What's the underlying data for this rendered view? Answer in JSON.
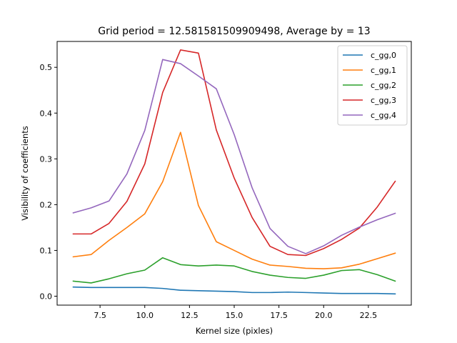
{
  "chart_data": {
    "type": "line",
    "title": "Grid period = 12.581581509909498, Average by = 13",
    "xlabel": "Kernel size (pixles)",
    "ylabel": "Visibility of coefficients",
    "xlim": [
      5.1,
      24.9
    ],
    "ylim": [
      -0.0195,
      0.5565
    ],
    "xticks": [
      7.5,
      10.0,
      12.5,
      15.0,
      17.5,
      20.0,
      22.5
    ],
    "xtick_labels": [
      "7.5",
      "10.0",
      "12.5",
      "15.0",
      "17.5",
      "20.0",
      "22.5"
    ],
    "yticks": [
      0.0,
      0.1,
      0.2,
      0.3,
      0.4,
      0.5
    ],
    "ytick_labels": [
      "0.0",
      "0.1",
      "0.2",
      "0.3",
      "0.4",
      "0.5"
    ],
    "grid": false,
    "legend_position": "top-right",
    "x": [
      6,
      7,
      8,
      9,
      10,
      11,
      12,
      13,
      14,
      15,
      16,
      17,
      18,
      19,
      20,
      21,
      22,
      23,
      24
    ],
    "series": [
      {
        "name": "c_gg,0",
        "color": "#1f77b4",
        "values": [
          0.02,
          0.019,
          0.019,
          0.019,
          0.019,
          0.017,
          0.013,
          0.012,
          0.011,
          0.01,
          0.008,
          0.008,
          0.009,
          0.008,
          0.007,
          0.006,
          0.006,
          0.006,
          0.005
        ]
      },
      {
        "name": "c_gg,1",
        "color": "#ff7f0e",
        "values": [
          0.086,
          0.091,
          0.122,
          0.15,
          0.18,
          0.25,
          0.358,
          0.198,
          0.119,
          0.1,
          0.081,
          0.068,
          0.065,
          0.061,
          0.06,
          0.062,
          0.07,
          0.082,
          0.094
        ]
      },
      {
        "name": "c_gg,2",
        "color": "#2ca02c",
        "values": [
          0.033,
          0.029,
          0.038,
          0.049,
          0.057,
          0.084,
          0.069,
          0.066,
          0.068,
          0.066,
          0.054,
          0.046,
          0.041,
          0.039,
          0.046,
          0.056,
          0.058,
          0.047,
          0.033
        ]
      },
      {
        "name": "c_gg,3",
        "color": "#d62728",
        "values": [
          0.136,
          0.136,
          0.159,
          0.207,
          0.289,
          0.445,
          0.538,
          0.531,
          0.363,
          0.258,
          0.172,
          0.109,
          0.091,
          0.089,
          0.104,
          0.124,
          0.149,
          0.195,
          0.251
        ]
      },
      {
        "name": "c_gg,4",
        "color": "#9467bd",
        "values": [
          0.182,
          0.193,
          0.208,
          0.267,
          0.362,
          0.517,
          0.508,
          0.481,
          0.453,
          0.353,
          0.237,
          0.148,
          0.109,
          0.093,
          0.11,
          0.133,
          0.151,
          0.167,
          0.181
        ]
      }
    ]
  }
}
